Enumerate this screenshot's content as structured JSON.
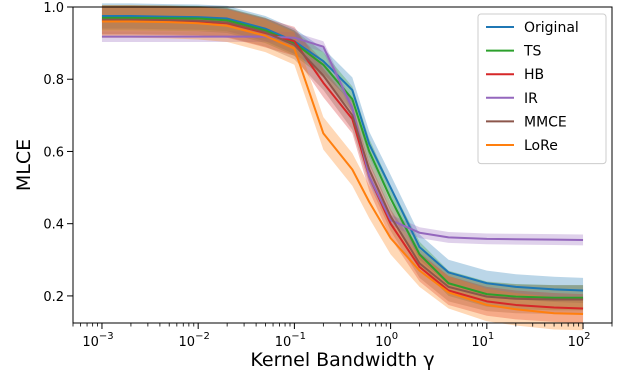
{
  "chart_data": {
    "type": "line",
    "title": "",
    "xlabel": "Kernel Bandwidth γ",
    "ylabel": "MLCE",
    "x_scale": "log",
    "xlim": [
      0.0005,
      200
    ],
    "ylim": [
      0.125,
      1.0
    ],
    "x": [
      0.001,
      0.002,
      0.005,
      0.01,
      0.02,
      0.05,
      0.1,
      0.2,
      0.4,
      0.6,
      1,
      2,
      4,
      10,
      20,
      50,
      100
    ],
    "x_ticks": [
      {
        "value": 0.001,
        "base": "10",
        "exp": "−3"
      },
      {
        "value": 0.01,
        "base": "10",
        "exp": "−2"
      },
      {
        "value": 0.1,
        "base": "10",
        "exp": "−1"
      },
      {
        "value": 1,
        "base": "10",
        "exp": "0"
      },
      {
        "value": 10,
        "base": "10",
        "exp": "1"
      },
      {
        "value": 100,
        "base": "10",
        "exp": "2"
      }
    ],
    "y_ticks": [
      {
        "value": 0.2,
        "label": "0.2"
      },
      {
        "value": 0.4,
        "label": "0.4"
      },
      {
        "value": 0.6,
        "label": "0.6"
      },
      {
        "value": 0.8,
        "label": "0.8"
      },
      {
        "value": 1.0,
        "label": "1.0"
      }
    ],
    "legend_position": "top-right",
    "grid": false,
    "series": [
      {
        "name": "Original",
        "color": "#1f77b4",
        "band": 0.035,
        "values": [
          0.975,
          0.975,
          0.973,
          0.972,
          0.968,
          0.94,
          0.905,
          0.85,
          0.77,
          0.62,
          0.5,
          0.335,
          0.265,
          0.235,
          0.225,
          0.218,
          0.215
        ]
      },
      {
        "name": "TS",
        "color": "#2ca02c",
        "band": 0.035,
        "values": [
          0.97,
          0.97,
          0.969,
          0.968,
          0.963,
          0.935,
          0.9,
          0.84,
          0.745,
          0.6,
          0.47,
          0.315,
          0.235,
          0.205,
          0.198,
          0.195,
          0.195
        ]
      },
      {
        "name": "HB",
        "color": "#d62728",
        "band": 0.04,
        "values": [
          0.963,
          0.963,
          0.962,
          0.96,
          0.955,
          0.928,
          0.905,
          0.79,
          0.69,
          0.53,
          0.4,
          0.28,
          0.215,
          0.185,
          0.175,
          0.168,
          0.165
        ]
      },
      {
        "name": "IR",
        "color": "#9467bd",
        "band": 0.015,
        "values": [
          0.918,
          0.918,
          0.918,
          0.918,
          0.918,
          0.918,
          0.915,
          0.89,
          0.72,
          0.53,
          0.41,
          0.375,
          0.362,
          0.358,
          0.357,
          0.356,
          0.355
        ]
      },
      {
        "name": "MMCE",
        "color": "#8c564b",
        "band": 0.04,
        "values": [
          0.965,
          0.965,
          0.964,
          0.962,
          0.957,
          0.93,
          0.895,
          0.81,
          0.7,
          0.55,
          0.42,
          0.29,
          0.225,
          0.198,
          0.192,
          0.19,
          0.19
        ]
      },
      {
        "name": "LoRe",
        "color": "#ff7f0e",
        "band": 0.045,
        "values": [
          0.96,
          0.96,
          0.958,
          0.955,
          0.948,
          0.92,
          0.885,
          0.65,
          0.55,
          0.46,
          0.36,
          0.27,
          0.21,
          0.175,
          0.163,
          0.152,
          0.15
        ]
      }
    ]
  }
}
